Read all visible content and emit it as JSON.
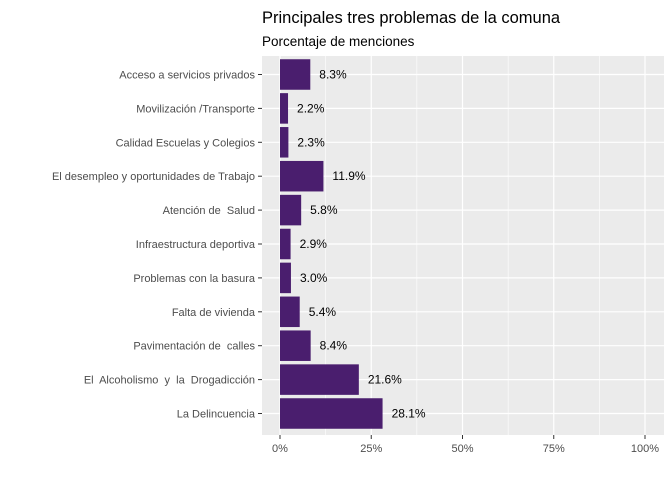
{
  "chart_data": {
    "type": "bar",
    "orientation": "horizontal",
    "title": "Principales tres problemas de la comuna",
    "subtitle": "Porcentaje de menciones",
    "xlabel": "",
    "ylabel": "",
    "xlim": [
      0,
      100
    ],
    "x_ticks": [
      0,
      25,
      50,
      75,
      100
    ],
    "x_tick_labels": [
      "0%",
      "25%",
      "50%",
      "75%",
      "100%"
    ],
    "grid": true,
    "bar_color": "#4a1e6e",
    "panel_color": "#ebebeb",
    "categories": [
      "Acceso a servicios privados",
      "Movilización /Transporte",
      "Calidad Escuelas y Colegios",
      "El desempleo y oportunidades de Trabajo",
      "Atención de  Salud",
      "Infraestructura deportiva",
      "Problemas con la basura",
      "Falta de vivienda",
      "Pavimentación de  calles",
      "El  Alcoholismo  y  la  Drogadicción",
      "La Delincuencia"
    ],
    "values": [
      8.3,
      2.2,
      2.3,
      11.9,
      5.8,
      2.9,
      3.0,
      5.4,
      8.4,
      21.6,
      28.1
    ],
    "value_labels": [
      "8.3%",
      "2.2%",
      "2.3%",
      "11.9%",
      "5.8%",
      "2.9%",
      "3.0%",
      "5.4%",
      "8.4%",
      "21.6%",
      "28.1%"
    ]
  }
}
